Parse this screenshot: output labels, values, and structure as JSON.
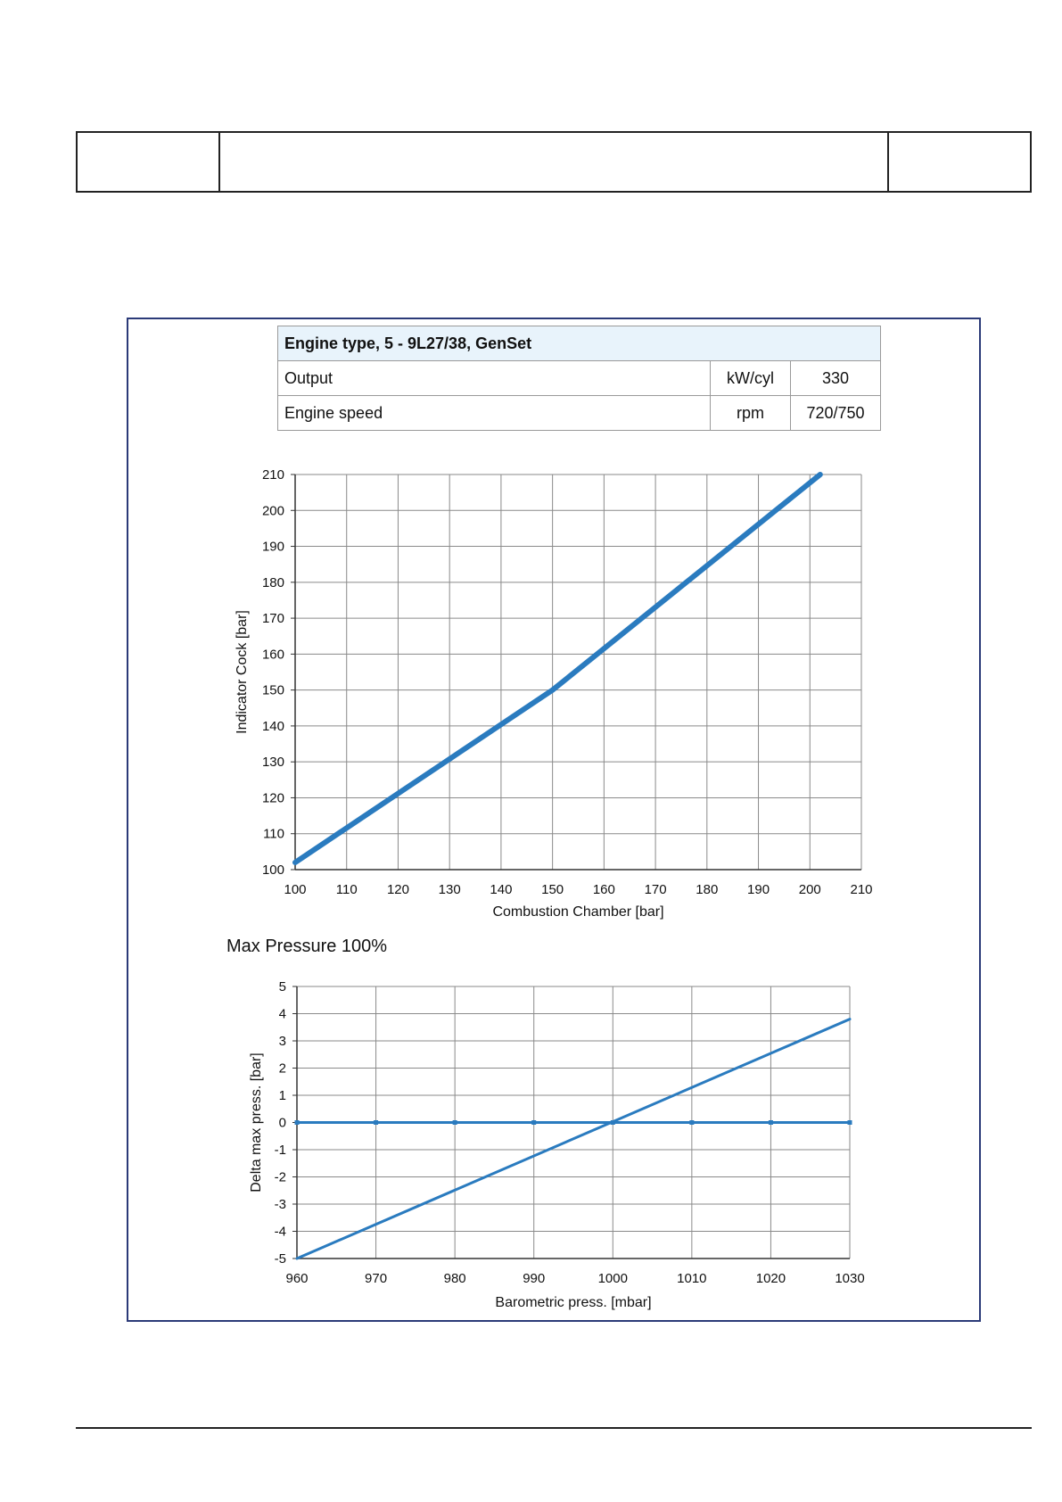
{
  "spec_table": {
    "title": "Engine type, 5 - 9L27/38, GenSet",
    "rows": [
      {
        "label": "Output",
        "unit": "kW/cyl",
        "value": "330"
      },
      {
        "label": "Engine speed",
        "unit": "rpm",
        "value": "720/750"
      }
    ]
  },
  "chart_data": [
    {
      "type": "line",
      "title": "",
      "xlabel": "Combustion Chamber [bar]",
      "ylabel": "Indicator Cock [bar]",
      "xlim": [
        100,
        210
      ],
      "ylim": [
        100,
        210
      ],
      "xticks": [
        100,
        110,
        120,
        130,
        140,
        150,
        160,
        170,
        180,
        190,
        200,
        210
      ],
      "yticks": [
        100,
        110,
        120,
        130,
        140,
        150,
        160,
        170,
        180,
        190,
        200,
        210
      ],
      "grid": true,
      "color": "#2a7bbf",
      "series": [
        {
          "x": [
            100,
            150,
            202
          ],
          "y": [
            102,
            150,
            210
          ]
        }
      ]
    },
    {
      "type": "line",
      "title": "Max Pressure 100%",
      "xlabel": "Barometric press. [mbar]",
      "ylabel": "Delta max press. [bar]",
      "xlim": [
        960,
        1030
      ],
      "ylim": [
        -5,
        5
      ],
      "xticks": [
        960,
        970,
        980,
        990,
        1000,
        1010,
        1020,
        1030
      ],
      "yticks": [
        5,
        4,
        3,
        2,
        1,
        0,
        -1,
        -2,
        -3,
        -4,
        -5
      ],
      "grid": true,
      "color": "#2a7bbf",
      "series": [
        {
          "x": [
            960,
            970,
            980,
            990,
            1000,
            1010,
            1020,
            1030
          ],
          "y": [
            0,
            0,
            0,
            0,
            0,
            0,
            0,
            0
          ],
          "markers": true
        },
        {
          "x": [
            960,
            1030
          ],
          "y": [
            -5,
            3.8
          ]
        }
      ]
    }
  ]
}
